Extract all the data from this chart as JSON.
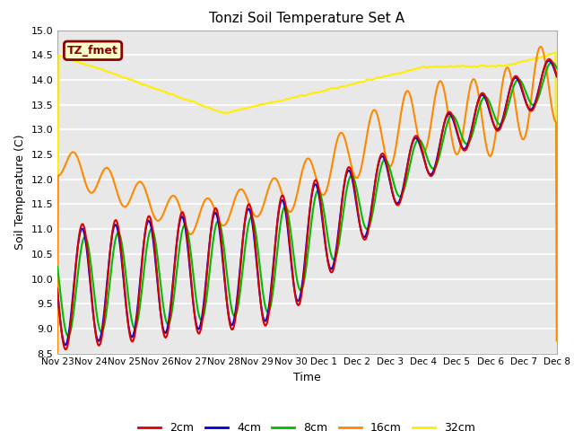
{
  "title": "Tonzi Soil Temperature Set A",
  "xlabel": "Time",
  "ylabel": "Soil Temperature (C)",
  "ylim": [
    8.5,
    15.0
  ],
  "yticks": [
    8.5,
    9.0,
    9.5,
    10.0,
    10.5,
    11.0,
    11.5,
    12.0,
    12.5,
    13.0,
    13.5,
    14.0,
    14.5,
    15.0
  ],
  "plot_bg_color": "#e8e8e8",
  "fig_bg_color": "#ffffff",
  "legend_label": "TZ_fmet",
  "legend_bg": "#ffffcc",
  "legend_border": "#8B0000",
  "series_colors": {
    "2cm": "#dd0000",
    "4cm": "#0000cc",
    "8cm": "#00bb00",
    "16cm": "#ff8800",
    "32cm": "#ffee00"
  },
  "x_tick_labels": [
    "Nov 23",
    "Nov 24",
    "Nov 25",
    "Nov 26",
    "Nov 27",
    "Nov 28",
    "Nov 29",
    "Nov 30",
    "Dec 1",
    "Dec 2",
    "Dec 3",
    "Dec 4",
    "Dec 5",
    "Dec 6",
    "Dec 7",
    "Dec 8"
  ],
  "x_tick_positions": [
    0,
    1,
    2,
    3,
    4,
    5,
    6,
    7,
    8,
    9,
    10,
    11,
    12,
    13,
    14,
    15
  ]
}
